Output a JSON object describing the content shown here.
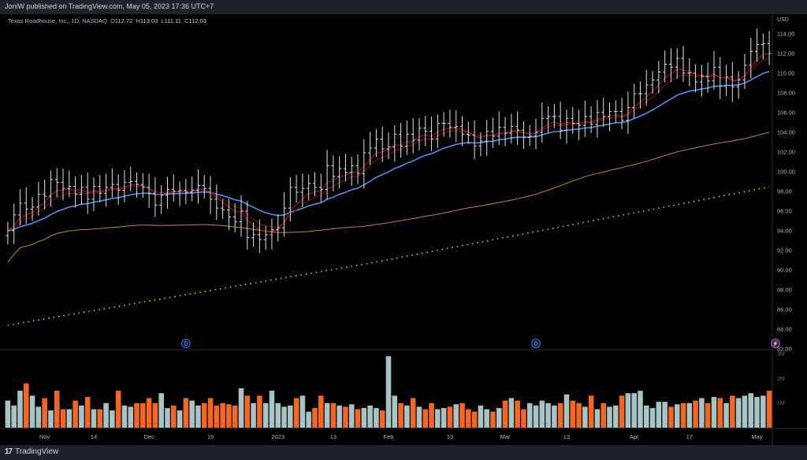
{
  "header": {
    "publish_line": "JoniW published on TradingView.com, May 05, 2023 17:36 UTC+7"
  },
  "legend": {
    "symbol": "Texas Roadhouse, Inc., 1D, NASDAQ",
    "open_key": "O",
    "open": "112.72",
    "high_key": "H",
    "high": "113.03",
    "low_key": "L",
    "low": "111.11",
    "close_key": "C",
    "close": "112.03"
  },
  "footer": {
    "brand": "TradingView",
    "logo": "17"
  },
  "colors": {
    "up_volume": "#a7c4c5",
    "down_volume": "#f6661f",
    "ema_fast": "#b31515",
    "ema_slow": "#8b0f12",
    "ma_blue": "#4c8ff5",
    "ma_tan": "#b8893a",
    "ma_dots": "#f5b93a",
    "bars": "#e0e3eb"
  },
  "chart_data": {
    "type": "ohlc",
    "currency": "USD",
    "y_ticks": [
      "114.00",
      "112.00",
      "110.00",
      "108.00",
      "106.00",
      "104.00",
      "102.00",
      "100.00",
      "98.00",
      "96.00",
      "94.00",
      "92.00",
      "90.00",
      "88.00",
      "86.00",
      "84.00",
      "82.00"
    ],
    "ylim": [
      82,
      115.5
    ],
    "volume_ticks": [
      "3M",
      "2M",
      "1M"
    ],
    "volume_ylim": [
      0,
      3.1
    ],
    "x_labels": [
      "Nov",
      "14",
      "Dec",
      "19",
      "2023",
      "13",
      "Feb",
      "13",
      "Mar",
      "13",
      "Apr",
      "17",
      "May"
    ],
    "x_label_index": [
      6,
      14,
      23,
      33,
      44,
      53,
      62,
      72,
      81,
      91,
      102,
      111,
      122
    ],
    "event_markers": [
      {
        "label": "D",
        "index": 29
      },
      {
        "label": "D",
        "index": 86
      },
      {
        "label": "⚡",
        "index": 125
      }
    ],
    "closes": [
      94.0,
      95.6,
      96.8,
      96.2,
      96.4,
      97.7,
      97.5,
      99.2,
      98.9,
      98.3,
      98.5,
      97.7,
      98.4,
      97.2,
      98.5,
      97.8,
      98.4,
      98.7,
      98.1,
      98.9,
      99.0,
      98.7,
      98.4,
      97.8,
      96.6,
      97.6,
      98.2,
      98.0,
      98.1,
      97.9,
      98.1,
      98.6,
      98.3,
      97.2,
      96.3,
      96.1,
      95.4,
      94.9,
      96.0,
      93.3,
      93.6,
      93.1,
      93.6,
      94.1,
      94.3,
      96.3,
      98.4,
      97.9,
      98.3,
      98.8,
      98.4,
      98.2,
      100.6,
      99.5,
      100.3,
      99.9,
      100.6,
      99.8,
      101.9,
      102.4,
      103.3,
      102.3,
      102.5,
      103.8,
      102.6,
      103.8,
      103.2,
      104.4,
      104.1,
      103.3,
      104.9,
      104.9,
      104.5,
      104.6,
      103.8,
      103.7,
      102.6,
      103.1,
      104.1,
      103.6,
      104.5,
      103.9,
      104.6,
      104.2,
      103.5,
      103.6,
      104.0,
      105.4,
      105.6,
      105.6,
      104.2,
      105.4,
      104.9,
      104.7,
      105.6,
      104.8,
      106.0,
      105.6,
      106.1,
      106.1,
      105.2,
      106.5,
      107.9,
      107.9,
      108.8,
      109.3,
      110.1,
      110.9,
      110.6,
      111.5,
      110.0,
      110.0,
      109.1,
      109.7,
      109.2,
      110.6,
      108.7,
      109.6,
      108.6,
      109.3,
      110.8,
      112.2,
      112.9,
      113.0,
      112.0
    ],
    "volumes": [
      1.1,
      0.9,
      1.5,
      1.8,
      1.3,
      0.85,
      1.2,
      0.7,
      1.5,
      0.75,
      0.75,
      1.1,
      0.9,
      1.25,
      0.75,
      0.75,
      1.0,
      0.7,
      1.5,
      0.9,
      0.85,
      1.0,
      1.0,
      1.2,
      1.0,
      1.4,
      0.8,
      0.9,
      0.7,
      1.2,
      1.1,
      0.9,
      1.0,
      1.2,
      0.9,
      1.0,
      0.95,
      0.9,
      1.6,
      1.3,
      1.0,
      1.3,
      1.0,
      1.5,
      1.0,
      0.85,
      0.9,
      1.2,
      1.3,
      0.65,
      0.8,
      1.3,
      1.0,
      1.0,
      0.9,
      0.85,
      0.95,
      0.75,
      0.8,
      0.9,
      0.8,
      0.7,
      2.9,
      1.3,
      1.0,
      0.9,
      1.2,
      0.85,
      0.75,
      1.0,
      0.75,
      0.8,
      0.85,
      0.95,
      1.0,
      0.75,
      0.65,
      0.9,
      0.75,
      0.65,
      0.8,
      1.1,
      1.2,
      1.1,
      0.75,
      1.0,
      0.9,
      1.1,
      1.0,
      0.9,
      1.0,
      1.35,
      1.1,
      1.0,
      0.85,
      1.3,
      0.75,
      1.0,
      0.85,
      0.9,
      1.3,
      1.4,
      1.4,
      1.5,
      0.9,
      0.8,
      1.05,
      1.05,
      0.85,
      0.95,
      1.0,
      1.0,
      1.1,
      1.2,
      1.0,
      1.25,
      1.2,
      1.0,
      1.3,
      1.2,
      1.3,
      1.4,
      1.25,
      1.3,
      1.5
    ]
  }
}
